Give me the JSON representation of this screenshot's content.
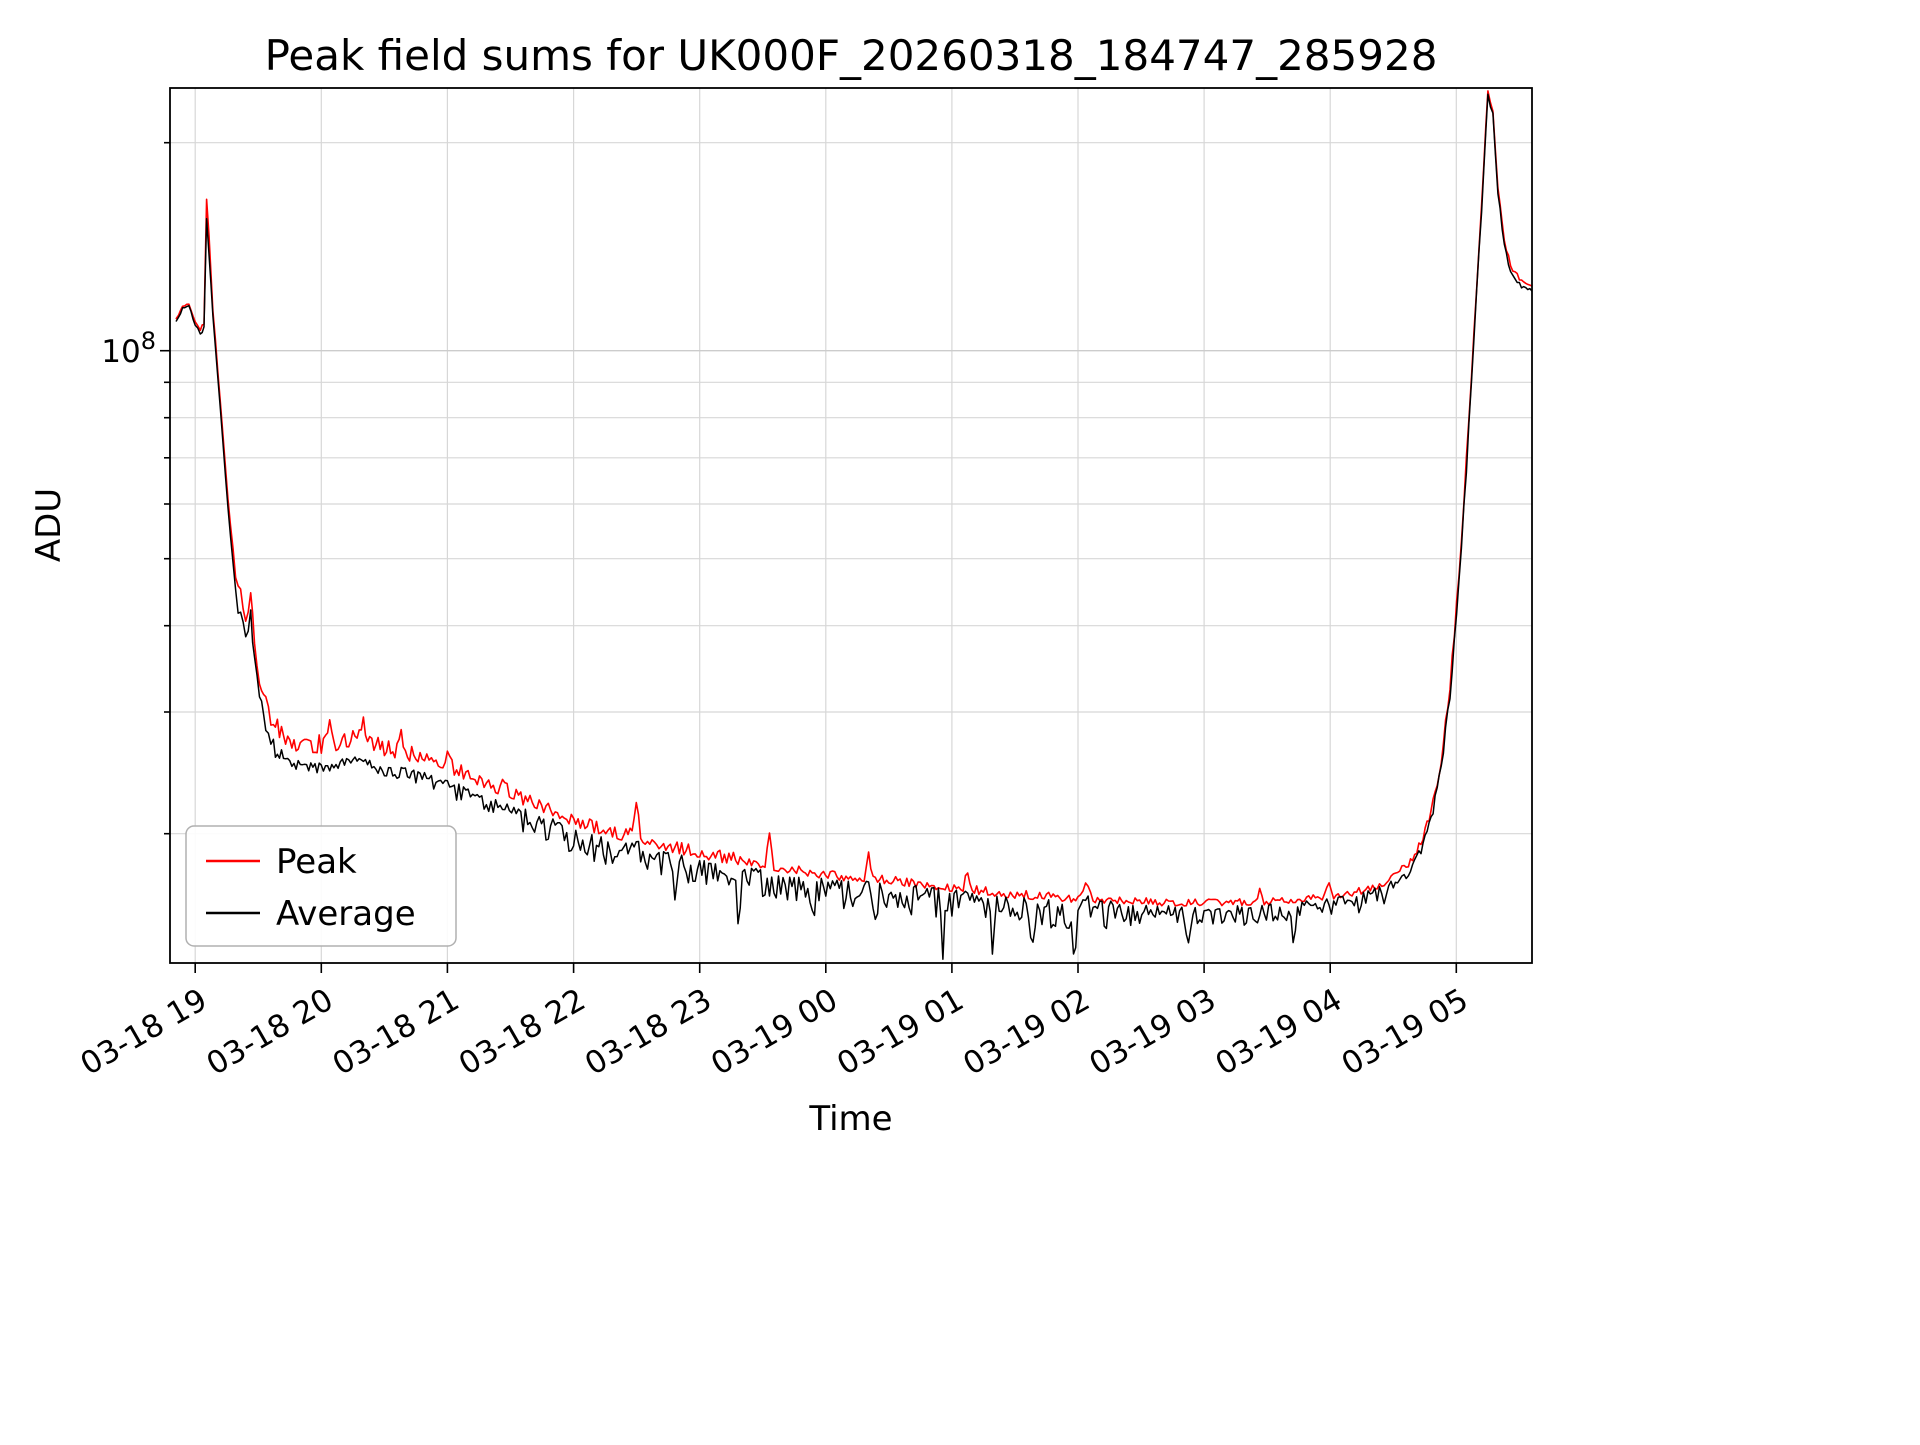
{
  "title": "Peak field sums for UK000F_20260318_184747_285928",
  "chart_data": {
    "type": "line",
    "title": "Peak field sums for UK000F_20260318_184747_285928",
    "xlabel": "Time",
    "ylabel": "ADU",
    "yscale": "log",
    "grid": "on",
    "xlim": [
      18.8,
      29.6
    ],
    "ylim": [
      13000000.0,
      240000000.0
    ],
    "ytick": {
      "base": "10",
      "exp": "8",
      "value": 100000000.0
    },
    "x_ticks": [
      {
        "x": 19,
        "label": "03-18 19"
      },
      {
        "x": 20,
        "label": "03-18 20"
      },
      {
        "x": 21,
        "label": "03-18 21"
      },
      {
        "x": 22,
        "label": "03-18 22"
      },
      {
        "x": 23,
        "label": "03-18 23"
      },
      {
        "x": 24,
        "label": "03-19 00"
      },
      {
        "x": 25,
        "label": "03-19 01"
      },
      {
        "x": 26,
        "label": "03-19 02"
      },
      {
        "x": 27,
        "label": "03-19 03"
      },
      {
        "x": 28,
        "label": "03-19 04"
      },
      {
        "x": 29,
        "label": "03-19 05"
      }
    ],
    "legend": {
      "position": "lower left",
      "entries": [
        {
          "label": "Peak",
          "color": "#ff0000"
        },
        {
          "label": "Average",
          "color": "#000000"
        }
      ]
    },
    "x_hours": [
      18.85,
      18.9,
      18.95,
      19.0,
      19.04,
      19.07,
      19.09,
      19.11,
      19.14,
      19.2,
      19.26,
      19.32,
      19.38,
      19.42,
      19.44,
      19.47,
      19.51,
      19.56,
      19.62,
      19.7,
      19.8,
      19.95,
      20.1,
      20.25,
      20.35,
      20.5,
      20.65,
      20.8,
      21.0,
      21.2,
      21.4,
      21.6,
      21.8,
      22.0,
      22.2,
      22.4,
      22.48,
      22.55,
      22.75,
      23.0,
      23.25,
      23.5,
      23.75,
      24.0,
      24.25,
      24.5,
      24.75,
      25.0,
      25.25,
      25.5,
      25.75,
      26.0,
      26.06,
      26.12,
      26.4,
      26.7,
      27.0,
      27.3,
      27.6,
      27.9,
      28.1,
      28.3,
      28.5,
      28.62,
      28.72,
      28.8,
      28.88,
      28.95,
      29.02,
      29.08,
      29.14,
      29.2,
      29.25,
      29.29,
      29.33,
      29.38,
      29.43,
      29.5,
      29.6
    ],
    "series": [
      {
        "name": "Peak",
        "color": "#ff0000",
        "values": [
          111000000.0,
          116000000.0,
          117000000.0,
          110000000.0,
          107000000.0,
          109000000.0,
          166000000.0,
          146000000.0,
          114000000.0,
          84000000.0,
          61000000.0,
          47000000.0,
          41500000.0,
          40500000.0,
          45000000.0,
          37000000.0,
          33000000.0,
          30500000.0,
          28400000.0,
          27200000.0,
          26700000.0,
          26400000.0,
          26700000.0,
          27100000.0,
          26900000.0,
          26200000.0,
          25800000.0,
          25500000.0,
          24700000.0,
          23900000.0,
          23100000.0,
          22200000.0,
          21500000.0,
          20700000.0,
          20100000.0,
          19700000.0,
          20100000.0,
          19500000.0,
          19000000.0,
          18600000.0,
          18200000.0,
          17900000.0,
          17600000.0,
          17300000.0,
          17100000.0,
          17000000.0,
          16800000.0,
          16600000.0,
          16400000.0,
          16200000.0,
          16100000.0,
          16000000.0,
          16300000.0,
          16000000.0,
          15900000.0,
          15800000.0,
          15800000.0,
          15800000.0,
          15900000.0,
          16100000.0,
          16200000.0,
          16500000.0,
          17100000.0,
          17900000.0,
          19300000.0,
          21300000.0,
          25300000.0,
          32400000.0,
          46500000.0,
          69000000.0,
          106000000.0,
          162000000.0,
          237000000.0,
          222000000.0,
          172000000.0,
          144000000.0,
          132000000.0,
          127000000.0,
          124000000.0
        ]
      },
      {
        "name": "Average",
        "color": "#000000",
        "values": [
          110000000.0,
          115000000.0,
          116000000.0,
          109000000.0,
          106000000.0,
          108000000.0,
          155000000.0,
          138000000.0,
          112000000.0,
          82000000.0,
          59000000.0,
          45000000.0,
          40000000.0,
          39000000.0,
          41500000.0,
          35500000.0,
          31500000.0,
          29000000.0,
          27000000.0,
          25800000.0,
          25300000.0,
          25000000.0,
          25200000.0,
          25600000.0,
          25400000.0,
          24800000.0,
          24500000.0,
          24200000.0,
          23500000.0,
          22800000.0,
          22000000.0,
          21200000.0,
          20600000.0,
          19800000.0,
          19300000.0,
          18900000.0,
          19300000.0,
          18700000.0,
          18300000.0,
          17900000.0,
          17600000.0,
          17300000.0,
          17000000.0,
          16800000.0,
          16600000.0,
          16500000.0,
          16300000.0,
          16100000.0,
          15900000.0,
          15700000.0,
          15600000.0,
          15500000.0,
          15900000.0,
          15500000.0,
          15500000.0,
          15400000.0,
          15400000.0,
          15400000.0,
          15500000.0,
          15700000.0,
          15900000.0,
          16200000.0,
          16800000.0,
          17600000.0,
          19000000.0,
          21000000.0,
          25000000.0,
          32000000.0,
          46000000.0,
          68000000.0,
          105000000.0,
          160000000.0,
          235000000.0,
          220000000.0,
          170000000.0,
          142000000.0,
          130000000.0,
          125000000.0,
          122000000.0
        ]
      }
    ],
    "noise_regions": [
      [
        18.8,
        19.34,
        0.004,
        0.004
      ],
      [
        19.34,
        19.7,
        0.018,
        0.022
      ],
      [
        19.7,
        20.6,
        0.012,
        0.022
      ],
      [
        20.6,
        21.6,
        0.02,
        0.018
      ],
      [
        21.6,
        23.3,
        0.03,
        0.014
      ],
      [
        23.3,
        26.3,
        0.034,
        0.01
      ],
      [
        26.3,
        28.5,
        0.024,
        0.008
      ],
      [
        28.5,
        29.1,
        0.01,
        0.01
      ],
      [
        29.1,
        29.6,
        0.005,
        0.005
      ]
    ],
    "red_spikes": [
      [
        20.07,
        0.045
      ],
      [
        20.33,
        0.035
      ],
      [
        20.63,
        0.03
      ],
      [
        21.02,
        0.025
      ],
      [
        21.45,
        0.02
      ],
      [
        22.49,
        0.045
      ],
      [
        23.55,
        0.05
      ],
      [
        24.34,
        0.04
      ],
      [
        25.13,
        0.025
      ],
      [
        26.06,
        0.02
      ],
      [
        27.44,
        0.018
      ],
      [
        28.0,
        0.015
      ]
    ],
    "black_dips": [
      [
        22.8,
        0.04
      ],
      [
        23.3,
        0.045
      ],
      [
        23.9,
        0.05
      ],
      [
        24.4,
        0.05
      ],
      [
        24.93,
        0.06
      ],
      [
        25.33,
        0.05
      ],
      [
        25.63,
        0.055
      ],
      [
        25.97,
        0.05
      ],
      [
        26.88,
        0.045
      ],
      [
        27.7,
        0.04
      ]
    ]
  }
}
